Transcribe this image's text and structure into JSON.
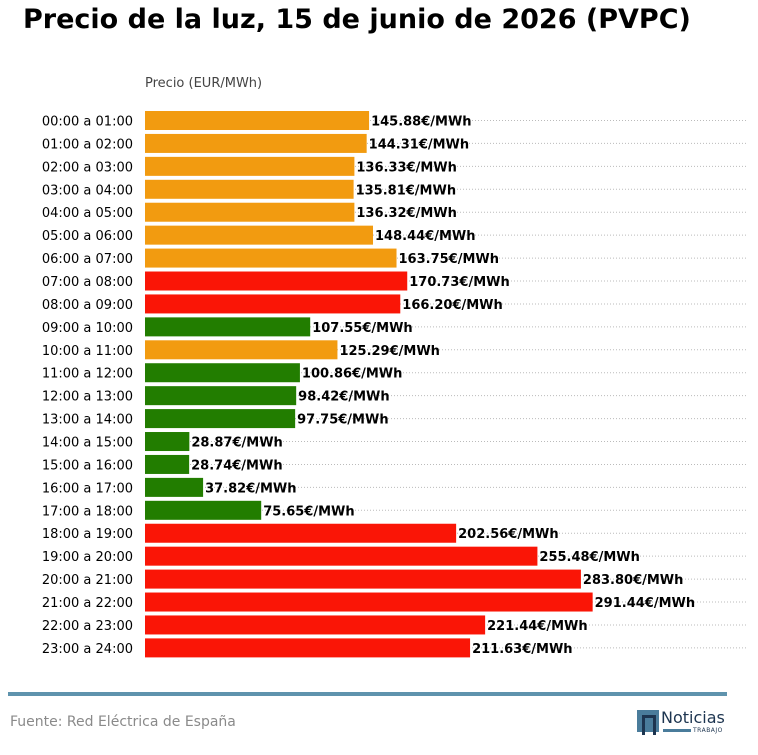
{
  "title": "Precio de la luz, 15 de junio de 2026 (PVPC)",
  "source": "Fuente: Red Eléctrica de España",
  "logo": {
    "name": "Noticias",
    "sub": "TRABAJO"
  },
  "colors": {
    "high": "#fa1506",
    "medium": "#f29b10",
    "low": "#227d00",
    "footer_line": "#5f93ad",
    "grid": "#bbbbbb"
  },
  "chart_data": {
    "type": "bar",
    "orientation": "horizontal",
    "xlabel": "Precio (EUR/MWh)",
    "ylabel": "",
    "xlim": [
      0,
      310
    ],
    "grid": true,
    "value_suffix": "€/MWh",
    "categories": [
      "00:00 a 01:00",
      "01:00 a 02:00",
      "02:00 a 03:00",
      "03:00 a 04:00",
      "04:00 a 05:00",
      "05:00 a 06:00",
      "06:00 a 07:00",
      "07:00 a 08:00",
      "08:00 a 09:00",
      "09:00 a 10:00",
      "10:00 a 11:00",
      "11:00 a 12:00",
      "12:00 a 13:00",
      "13:00 a 14:00",
      "14:00 a 15:00",
      "15:00 a 16:00",
      "16:00 a 17:00",
      "17:00 a 18:00",
      "18:00 a 19:00",
      "19:00 a 20:00",
      "20:00 a 21:00",
      "21:00 a 22:00",
      "22:00 a 23:00",
      "23:00 a 24:00"
    ],
    "values": [
      145.88,
      144.31,
      136.33,
      135.81,
      136.32,
      148.44,
      163.75,
      170.73,
      166.2,
      107.55,
      125.29,
      100.86,
      98.42,
      97.75,
      28.87,
      28.74,
      37.82,
      75.65,
      202.56,
      255.48,
      283.8,
      291.44,
      221.44,
      211.63
    ],
    "value_labels": [
      "145.88€/MWh",
      "144.31€/MWh",
      "136.33€/MWh",
      "135.81€/MWh",
      "136.32€/MWh",
      "148.44€/MWh",
      "163.75€/MWh",
      "170.73€/MWh",
      "166.20€/MWh",
      "107.55€/MWh",
      "125.29€/MWh",
      "100.86€/MWh",
      "98.42€/MWh",
      "97.75€/MWh",
      "28.87€/MWh",
      "28.74€/MWh",
      "37.82€/MWh",
      "75.65€/MWh",
      "202.56€/MWh",
      "255.48€/MWh",
      "283.80€/MWh",
      "291.44€/MWh",
      "221.44€/MWh",
      "211.63€/MWh"
    ],
    "bar_colors": [
      "medium",
      "medium",
      "medium",
      "medium",
      "medium",
      "medium",
      "medium",
      "high",
      "high",
      "low",
      "medium",
      "low",
      "low",
      "low",
      "low",
      "low",
      "low",
      "low",
      "high",
      "high",
      "high",
      "high",
      "high",
      "high"
    ]
  }
}
